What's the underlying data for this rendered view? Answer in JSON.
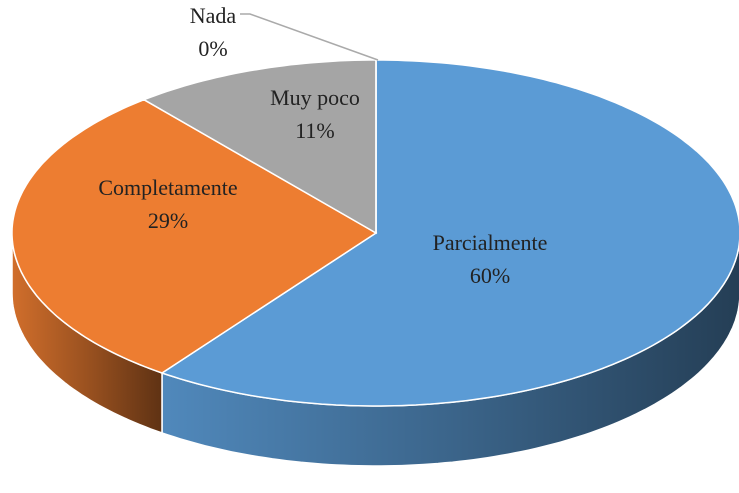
{
  "chart_data": {
    "type": "pie",
    "categories": [
      "Parcialmente",
      "Completamente",
      "Muy poco",
      "Nada"
    ],
    "values": [
      60,
      29,
      11,
      0
    ],
    "value_labels": [
      "60%",
      "29%",
      "11%",
      "0%"
    ],
    "colors": [
      "#5b9bd5",
      "#ed7d31",
      "#a5a5a5",
      "#ffc000"
    ]
  }
}
